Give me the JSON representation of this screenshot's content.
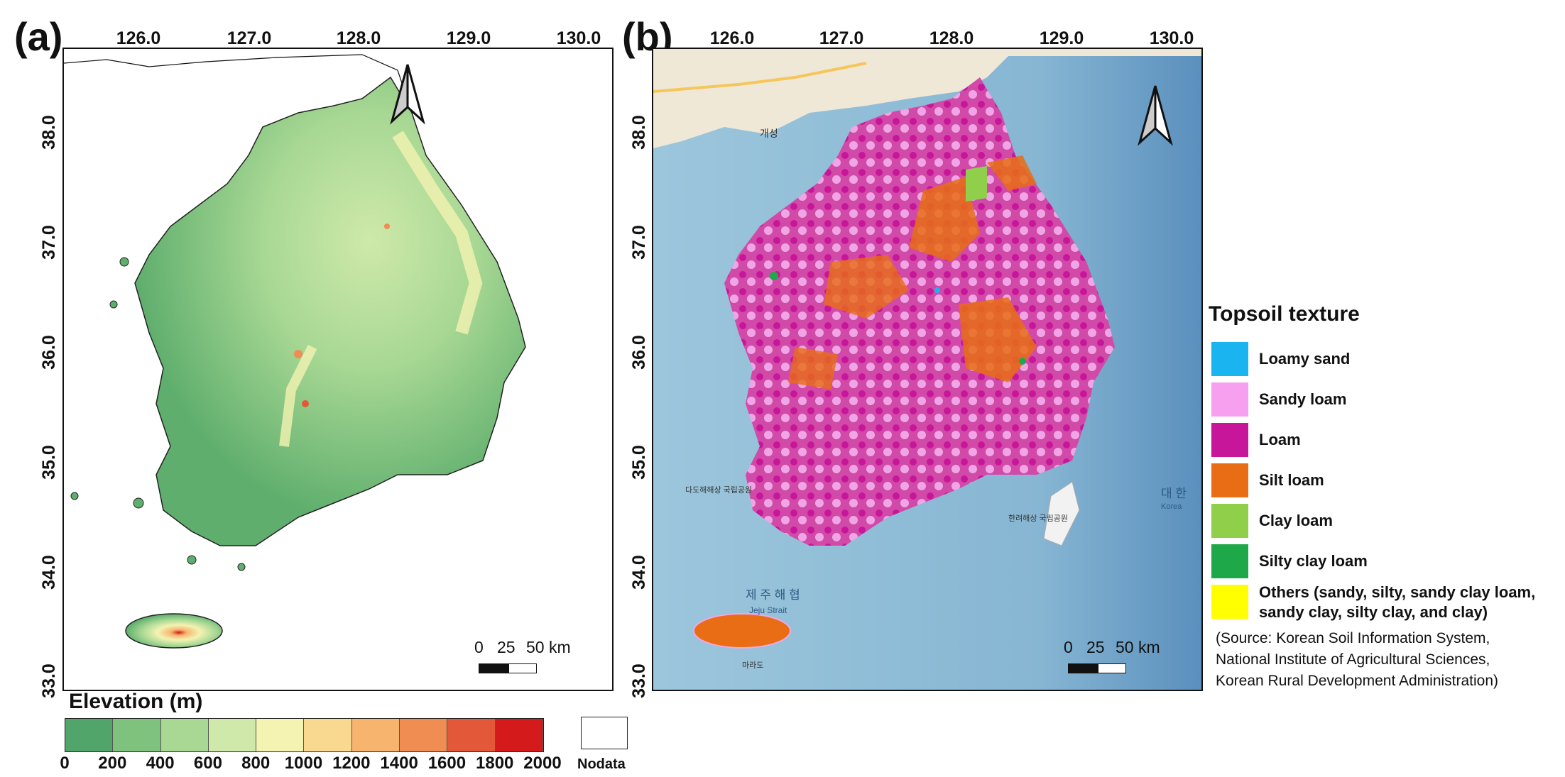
{
  "panels": {
    "a_label": "(a)",
    "b_label": "(b)"
  },
  "axes": {
    "lon_ticks": [
      "126.0",
      "127.0",
      "128.0",
      "129.0",
      "130.0"
    ],
    "lat_ticks": [
      "38.0",
      "37.0",
      "36.0",
      "35.0",
      "34.0",
      "33.0"
    ]
  },
  "scalebar": {
    "labels": [
      "0",
      "25",
      "50 km"
    ]
  },
  "elevation_legend": {
    "title": "Elevation (m)",
    "ticks": [
      "0",
      "200",
      "400",
      "600",
      "800",
      "1000",
      "1200",
      "1400",
      "1600",
      "1800",
      "2000"
    ],
    "colors": [
      "#52a56a",
      "#7fc27d",
      "#a8d894",
      "#cfe9aa",
      "#f4f3b2",
      "#f9d990",
      "#f6b46e",
      "#ef8d52",
      "#e4583a",
      "#d41a1a"
    ],
    "nodata_label": "Nodata"
  },
  "soil_legend": {
    "title": "Topsoil texture",
    "items": [
      {
        "label": "Loamy sand",
        "color": "#1ab4f0"
      },
      {
        "label": "Sandy loam",
        "color": "#f7a0f0"
      },
      {
        "label": "Loam",
        "color": "#c8169a"
      },
      {
        "label": "Silt loam",
        "color": "#e86d14"
      },
      {
        "label": "Clay loam",
        "color": "#8fcf4a"
      },
      {
        "label": "Silty clay loam",
        "color": "#1fa84a"
      },
      {
        "label": "Others (sandy, silty, sandy clay loam,",
        "label2": "sandy clay, silty clay, and clay)",
        "color": "#ffff00"
      }
    ],
    "source_lines": [
      "(Source: Korean Soil Information System,",
      "National Institute of Agricultural Sciences,",
      "Korean Rural Development Administration)"
    ]
  },
  "basemap_labels": {
    "jeju_strait": "제 주 해 협",
    "jeju_strait_en": "Jeju Strait",
    "korea": "대 한",
    "korea_en": "Korea",
    "gaeseong": "개성",
    "park1": "다도해해상\n국립공원",
    "park2": "한려해상\n국립공원",
    "marado": "마라도"
  }
}
